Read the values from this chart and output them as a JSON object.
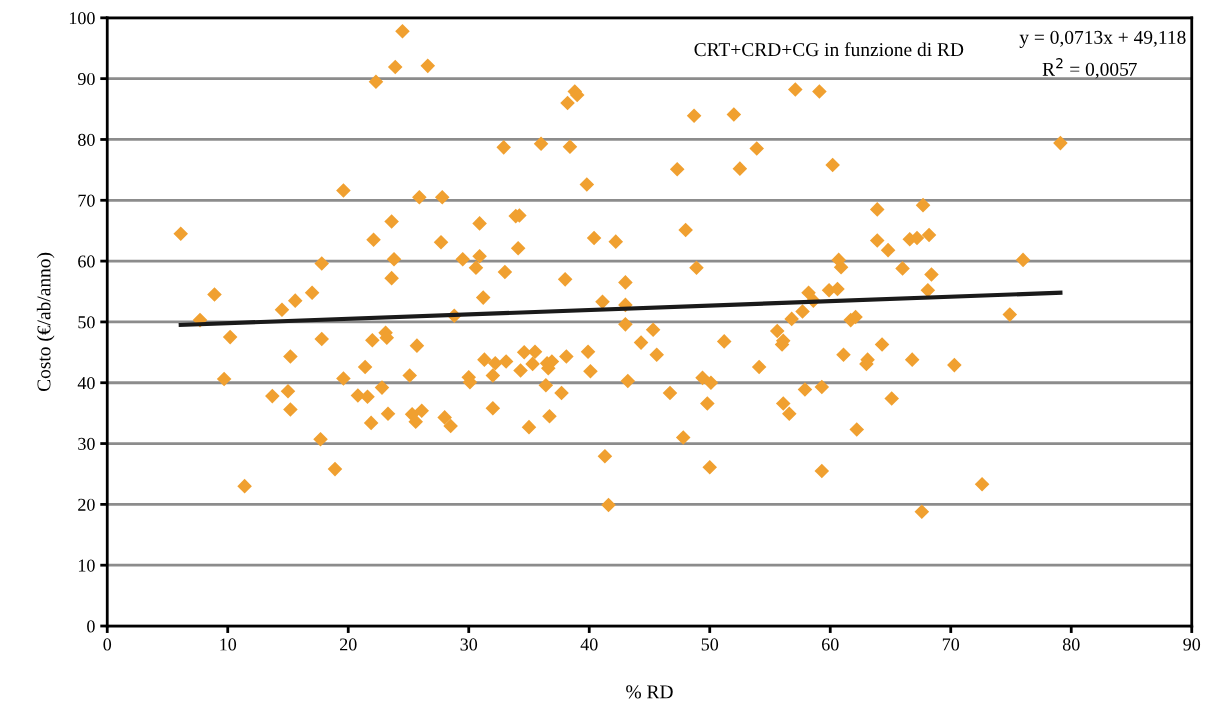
{
  "chart_data": {
    "type": "scatter",
    "xlabel": "% RD",
    "ylabel": "Costo (€/ab/anno)",
    "annotations": [
      "CRT+CRD+CG in funzione di RD",
      "y = 0,0713x + 49,118",
      "R$^{2}$ = 0,0057"
    ],
    "xlim": [
      0,
      90
    ],
    "xticks": [
      0,
      10,
      20,
      30,
      40,
      50,
      60,
      70,
      80,
      90
    ],
    "ylim": [
      0,
      100
    ],
    "yticks": [
      0,
      10,
      20,
      30,
      40,
      50,
      60,
      70,
      80,
      90,
      100
    ],
    "grid": "y",
    "legend": false,
    "series": [
      {
        "marker": "diamond",
        "color": "#f0a030",
        "x": [
          6.1,
          7.7,
          8.9,
          9.7,
          10.2,
          11.4,
          13.7,
          14.5,
          15,
          15.2,
          15.2,
          15.6,
          17,
          17.7,
          17.8,
          17.8,
          18.9,
          19.6,
          19.6,
          20.8,
          21.4,
          21.6,
          21.9,
          22,
          22.1,
          22.3,
          22.8,
          23.1,
          23.2,
          23.3,
          23.6,
          23.6,
          23.8,
          23.9,
          24.5,
          25.1,
          25.3,
          25.6,
          25.7,
          25.9,
          26.1,
          26.6,
          27.7,
          27.8,
          28,
          28.5,
          28.8,
          29.5,
          30,
          30.1,
          30.6,
          30.9,
          30.9,
          31.2,
          31.3,
          32,
          32,
          32.2,
          32.9,
          33,
          33.1,
          33.9,
          34.1,
          34.2,
          34.3,
          34.6,
          35,
          35.3,
          35.5,
          36,
          36.4,
          36.5,
          36.6,
          36.7,
          36.9,
          37.7,
          38,
          38.1,
          38.2,
          38.4,
          38.8,
          39,
          39.8,
          39.9,
          40.1,
          40.4,
          41.1,
          41.3,
          41.6,
          42.2,
          43,
          43,
          43,
          43.2,
          44.3,
          45.3,
          45.6,
          46.7,
          47.3,
          47.8,
          48,
          48.7,
          48.9,
          49.4,
          49.8,
          50,
          50.1,
          51.2,
          52,
          52.5,
          53.9,
          54.1,
          55.6,
          56,
          56.1,
          56.1,
          56.6,
          56.8,
          57.1,
          57.7,
          57.9,
          58.2,
          58.6,
          59.1,
          59.3,
          59.3,
          59.9,
          60.2,
          60.6,
          60.7,
          60.9,
          61.1,
          61.7,
          62.1,
          62.2,
          63,
          63.1,
          63.9,
          63.9,
          64.3,
          64.8,
          65.1,
          66,
          66.6,
          66.8,
          67.2,
          67.6,
          67.7,
          68.1,
          68.2,
          68.4,
          70.3,
          72.6,
          74.9,
          76,
          79.1
        ],
        "values": [
          64.5,
          50.3,
          54.5,
          40.6,
          47.5,
          23,
          37.8,
          52,
          38.6,
          44.3,
          35.6,
          53.5,
          54.8,
          30.7,
          47.2,
          59.6,
          25.8,
          71.6,
          40.7,
          37.9,
          42.6,
          37.7,
          33.4,
          47,
          63.5,
          89.5,
          39.2,
          48.2,
          47.4,
          34.9,
          66.5,
          57.2,
          60.3,
          91.9,
          97.8,
          41.2,
          34.8,
          33.6,
          46.1,
          70.5,
          35.4,
          92.1,
          63.1,
          70.5,
          34.3,
          32.9,
          51,
          60.3,
          40.9,
          40.1,
          58.9,
          66.2,
          60.8,
          54,
          43.8,
          41.2,
          35.8,
          43.2,
          78.7,
          58.2,
          43.5,
          67.4,
          62.1,
          67.5,
          42,
          45,
          32.7,
          43.1,
          45.1,
          79.3,
          39.6,
          43.2,
          42.4,
          34.5,
          43.5,
          38.3,
          57,
          44.3,
          86,
          78.8,
          87.9,
          87.3,
          72.6,
          45.1,
          41.9,
          63.8,
          53.3,
          27.9,
          19.9,
          63.2,
          56.5,
          52.8,
          49.6,
          40.3,
          46.6,
          48.7,
          44.6,
          38.3,
          75.1,
          31,
          65.1,
          83.9,
          58.9,
          40.8,
          36.6,
          26.1,
          40,
          46.8,
          84.1,
          75.2,
          78.5,
          42.6,
          48.5,
          46.3,
          46.9,
          36.6,
          34.9,
          50.5,
          88.2,
          51.7,
          38.9,
          54.8,
          53.5,
          87.9,
          39.3,
          25.5,
          55.2,
          75.8,
          55.4,
          60.2,
          59,
          44.6,
          50.3,
          50.8,
          32.3,
          43.1,
          43.8,
          63.4,
          68.5,
          46.3,
          61.8,
          37.4,
          58.8,
          63.6,
          43.8,
          63.8,
          18.8,
          69.2,
          55.2,
          64.3,
          57.8,
          42.9,
          23.3,
          51.2,
          60.2,
          79.4
        ]
      },
      {
        "type": "line",
        "marker": "none",
        "color": "#1a1a1a",
        "x": [
          6.1,
          79.1
        ],
        "values": [
          49.5,
          54.8
        ]
      }
    ]
  }
}
